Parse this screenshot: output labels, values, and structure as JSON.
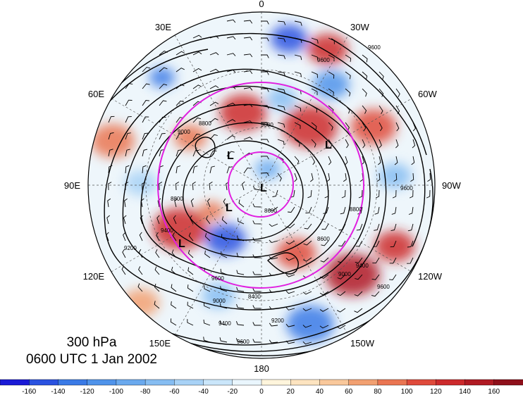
{
  "map": {
    "title_level": "300 hPa",
    "title_time": "0600 UTC 1 Jan 2002",
    "longitude_labels": [
      {
        "key": "lon-0",
        "text": "0"
      },
      {
        "key": "lon-30w",
        "text": "30W"
      },
      {
        "key": "lon-60w",
        "text": "60W"
      },
      {
        "key": "lon-90w",
        "text": "90W"
      },
      {
        "key": "lon-120w",
        "text": "120W"
      },
      {
        "key": "lon-150w",
        "text": "150W"
      },
      {
        "key": "lon-180",
        "text": "180"
      },
      {
        "key": "lon-150e",
        "text": "150E"
      },
      {
        "key": "lon-120e",
        "text": "120E"
      },
      {
        "key": "lon-90e",
        "text": "90E"
      },
      {
        "key": "lon-60e",
        "text": "60E"
      },
      {
        "key": "lon-30e",
        "text": "30E"
      }
    ],
    "contour_labels": [
      "9600",
      "9000",
      "8800",
      "8600",
      "9000",
      "8800",
      "9400",
      "9200",
      "8400",
      "9600",
      "9000",
      "9600",
      "9600",
      "9400",
      "9200",
      "9600",
      "8800",
      "8600",
      "9000",
      "9400",
      "9600"
    ],
    "low_markers": [
      "L",
      "L",
      "L",
      "L",
      "L"
    ],
    "colorbar": {
      "ticks": [
        "-160",
        "-140",
        "-120",
        "-100",
        "-80",
        "-60",
        "-40",
        "-20",
        "0",
        "20",
        "40",
        "60",
        "80",
        "100",
        "120",
        "140",
        "160"
      ],
      "colors": [
        "#1a1ad6",
        "#2a52e0",
        "#3a7ae6",
        "#4f93ea",
        "#6aa9ee",
        "#86bdf2",
        "#a8d2f6",
        "#cae6fa",
        "#eaf6fd",
        "#fff5dc",
        "#fde4c0",
        "#f9c89b",
        "#f2a071",
        "#ea7552",
        "#df4a3b",
        "#cc2a2c",
        "#b01a23",
        "#8e0f1a"
      ]
    },
    "colors": {
      "circle": "#e020e0",
      "contour": "#000000",
      "positive": "#cc2a2c",
      "negative": "#3a7ae6"
    }
  }
}
